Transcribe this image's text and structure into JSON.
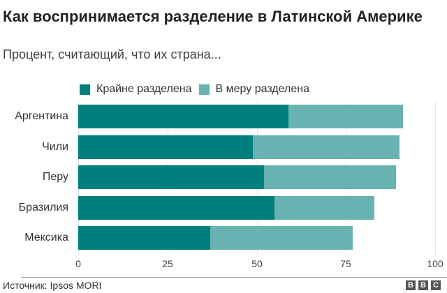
{
  "header": {
    "title": "Как воспринимается разделение в Латинской Америке",
    "subtitle": "Процент, считающий, что их страна..."
  },
  "legend": [
    {
      "label": "Крайне разделена",
      "color": "#007f7f"
    },
    {
      "label": "В меру разделена",
      "color": "#68b2b2"
    }
  ],
  "footer": {
    "source": "Источник: Ipsos MORI",
    "logo": [
      "B",
      "B",
      "C"
    ]
  },
  "colors": {
    "extreme": "#007f7f",
    "moderate": "#68b2b2",
    "gridline": "#e6e6e6"
  },
  "chart_data": {
    "type": "bar",
    "orientation": "horizontal",
    "stacked": true,
    "title": "Как воспринимается разделение в Латинской Америке",
    "subtitle": "Процент, считающий, что их страна...",
    "categories": [
      "Аргентина",
      "Чили",
      "Перу",
      "Бразилия",
      "Мексика"
    ],
    "series": [
      {
        "name": "Крайне разделена",
        "color": "#007f7f",
        "values": [
          59,
          49,
          52,
          55,
          37
        ]
      },
      {
        "name": "В меру разделена",
        "color": "#68b2b2",
        "values": [
          32,
          41,
          37,
          28,
          40
        ]
      }
    ],
    "xlabel": "",
    "ylabel": "",
    "xlim": [
      0,
      100
    ],
    "xticks": [
      0,
      25,
      50,
      75,
      100
    ],
    "grid": true,
    "legend_position": "top",
    "source": "Источник: Ipsos MORI"
  }
}
